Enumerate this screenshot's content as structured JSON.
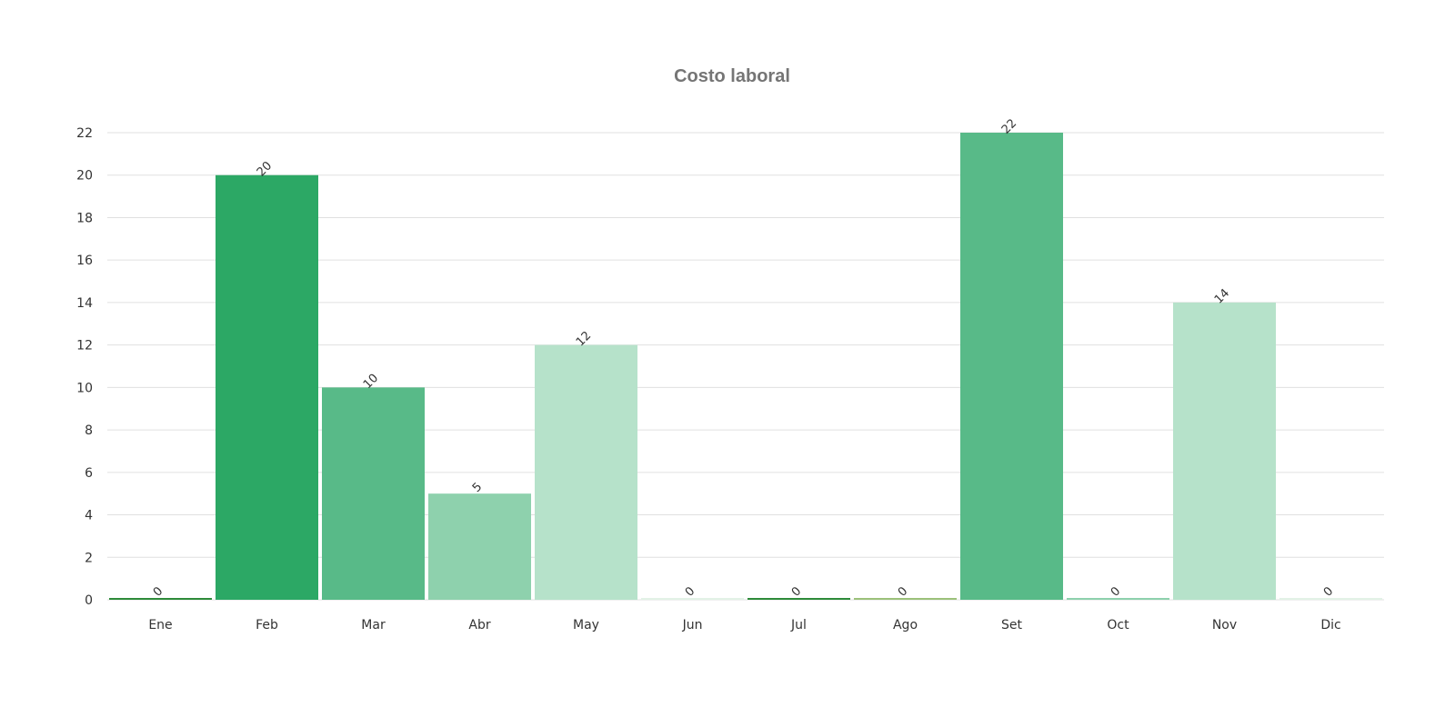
{
  "chart_data": {
    "type": "bar",
    "title": "Costo laboral",
    "xlabel": "",
    "ylabel": "",
    "categories": [
      "Ene",
      "Feb",
      "Mar",
      "Abr",
      "May",
      "Jun",
      "Jul",
      "Ago",
      "Set",
      "Oct",
      "Nov",
      "Dic"
    ],
    "values": [
      0,
      20,
      10,
      5,
      12,
      0,
      0,
      0,
      22,
      0,
      14,
      0
    ],
    "ylim": [
      0,
      22
    ],
    "yticks": [
      0,
      2,
      4,
      6,
      8,
      10,
      12,
      14,
      16,
      18,
      20,
      22
    ],
    "grid": true,
    "colors": [
      "#2e8b3a",
      "#2ca865",
      "#58ba88",
      "#8ed1ad",
      "#b6e2ca",
      "#e2f2e6",
      "#2e8b3a",
      "#9bc17a",
      "#58ba88",
      "#8ed1ad",
      "#b6e2ca",
      "#e2f2e6"
    ],
    "grid_color": "#e0e0e0"
  }
}
